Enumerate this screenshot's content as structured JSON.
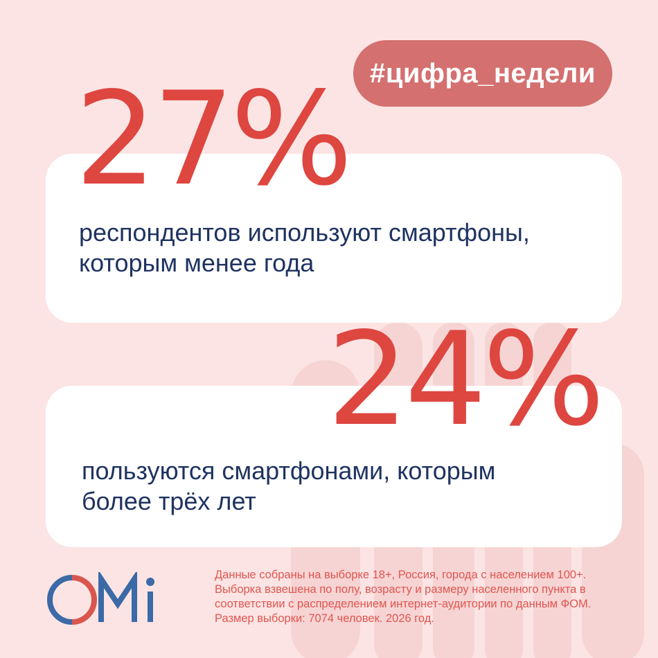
{
  "tag": "#цифра_недели",
  "stats": [
    {
      "value": "27%",
      "description_line1": "респондентов используют смартфоны,",
      "description_line2": "которым менее года"
    },
    {
      "value": "24%",
      "description_line1": "пользуются смартфонами, которым",
      "description_line2": "более трёх лет"
    }
  ],
  "footnote": "Данные собраны на выборке 18+, Россия, города с населением 100+. Выборка взвешена по полу, возрасту и размеру населенного пункта в соответствии с распределением интернет-аудитории по данным ФОМ. Размер выборки: 7074 человек. 2026 год.",
  "logo": {
    "letters": [
      "O",
      "M",
      "i"
    ],
    "colors": {
      "blue": "#3b6aa6",
      "red": "#d9564f"
    }
  },
  "colors": {
    "background": "#fce4e4",
    "accent": "#de4640",
    "pill": "#d47070",
    "text_dark": "#1f3361"
  }
}
